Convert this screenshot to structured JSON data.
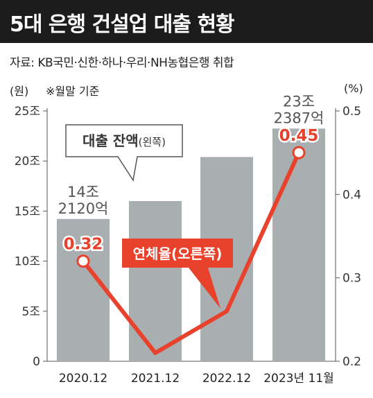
{
  "header": {
    "title": "5대 은행 건설업 대출 현황",
    "source": "자료: KB국민·신한·하나·우리·NH농협은행 취합",
    "unit_left": "(원)",
    "unit_right": "(%)",
    "note": "※월말 기준"
  },
  "chart_data": {
    "type": "bar",
    "categories": [
      "2020.12",
      "2021.12",
      "2022.12",
      "2023년 11월"
    ],
    "y_left": {
      "min": 0,
      "max": 25,
      "ticks": [
        0,
        5,
        10,
        15,
        20,
        25
      ],
      "tick_labels": [
        "0",
        "5조",
        "10조",
        "15조",
        "20조",
        "25조"
      ]
    },
    "y_right": {
      "min": 0.2,
      "max": 0.5,
      "ticks": [
        0.2,
        0.3,
        0.4,
        0.5
      ],
      "tick_labels": [
        "0.2",
        "0.3",
        "0.4",
        "0.5"
      ]
    },
    "series": [
      {
        "name": "대출 잔액(왼쪽)",
        "type": "bar",
        "axis": "left",
        "color": "#a9aeb1",
        "values": [
          14.212,
          16.0,
          20.4,
          23.2387
        ],
        "labels": [
          [
            "14조",
            "2120억"
          ],
          null,
          null,
          [
            "23조",
            "2387억"
          ]
        ]
      },
      {
        "name": "연체율(오른쪽)",
        "type": "line",
        "axis": "right",
        "color": "#e8412c",
        "values": [
          0.32,
          0.21,
          0.26,
          0.45
        ],
        "labels": [
          "0.32",
          null,
          null,
          "0.45"
        ]
      }
    ],
    "legend_bar": {
      "main": "대출 잔액",
      "suffix": "(왼쪽)"
    },
    "legend_line": "연체율(오른쪽)"
  }
}
